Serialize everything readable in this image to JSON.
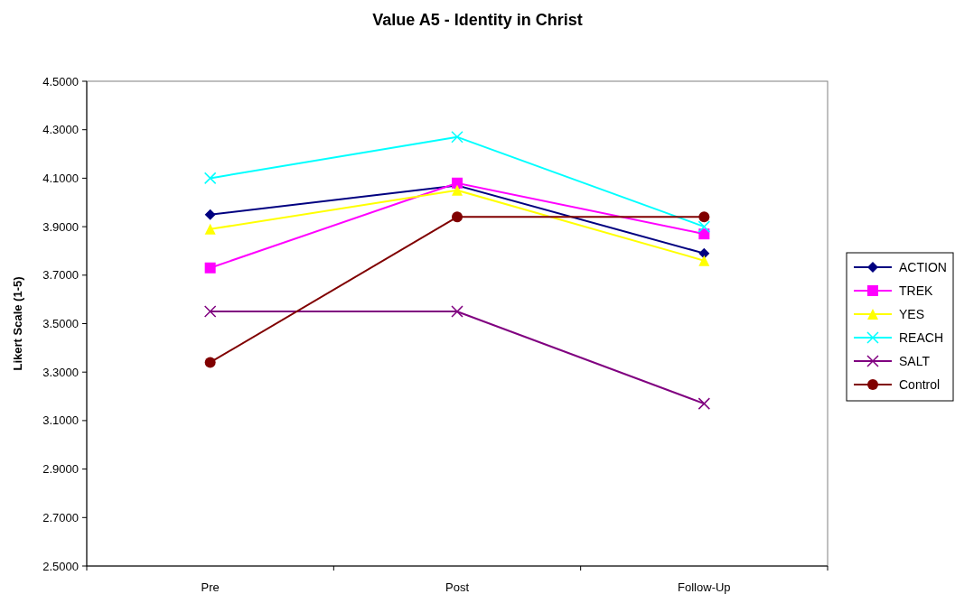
{
  "chart_data": {
    "type": "line",
    "title": "Value A5 - Identity in Christ",
    "ylabel": "Likert Scale (1-5)",
    "categories": [
      "Pre",
      "Post",
      "Follow-Up"
    ],
    "ylim": [
      2.5,
      4.5
    ],
    "yticks": [
      {
        "value": 2.5,
        "label": "2.5000"
      },
      {
        "value": 2.7,
        "label": "2.7000"
      },
      {
        "value": 2.9,
        "label": "2.9000"
      },
      {
        "value": 3.1,
        "label": "3.1000"
      },
      {
        "value": 3.3,
        "label": "3.3000"
      },
      {
        "value": 3.5,
        "label": "3.5000"
      },
      {
        "value": 3.7,
        "label": "3.7000"
      },
      {
        "value": 3.9,
        "label": "3.9000"
      },
      {
        "value": 4.1,
        "label": "4.1000"
      },
      {
        "value": 4.3,
        "label": "4.3000"
      },
      {
        "value": 4.5,
        "label": "4.5000"
      }
    ],
    "grid": false,
    "legend": "right",
    "series": [
      {
        "name": "ACTION",
        "color": "#000080",
        "marker": "diamond",
        "values": [
          3.95,
          4.07,
          3.79
        ]
      },
      {
        "name": "TREK",
        "color": "#ff00ff",
        "marker": "square",
        "values": [
          3.73,
          4.08,
          3.87
        ]
      },
      {
        "name": "YES",
        "color": "#ffff00",
        "marker": "triangle",
        "values": [
          3.89,
          4.05,
          3.76
        ]
      },
      {
        "name": "REACH",
        "color": "#00ffff",
        "marker": "cross",
        "values": [
          4.1,
          4.27,
          3.9
        ]
      },
      {
        "name": "SALT",
        "color": "#800080",
        "marker": "cross",
        "values": [
          3.55,
          3.55,
          3.17
        ]
      },
      {
        "name": "Control",
        "color": "#800000",
        "marker": "circle",
        "values": [
          3.34,
          3.94,
          3.94
        ]
      }
    ]
  }
}
